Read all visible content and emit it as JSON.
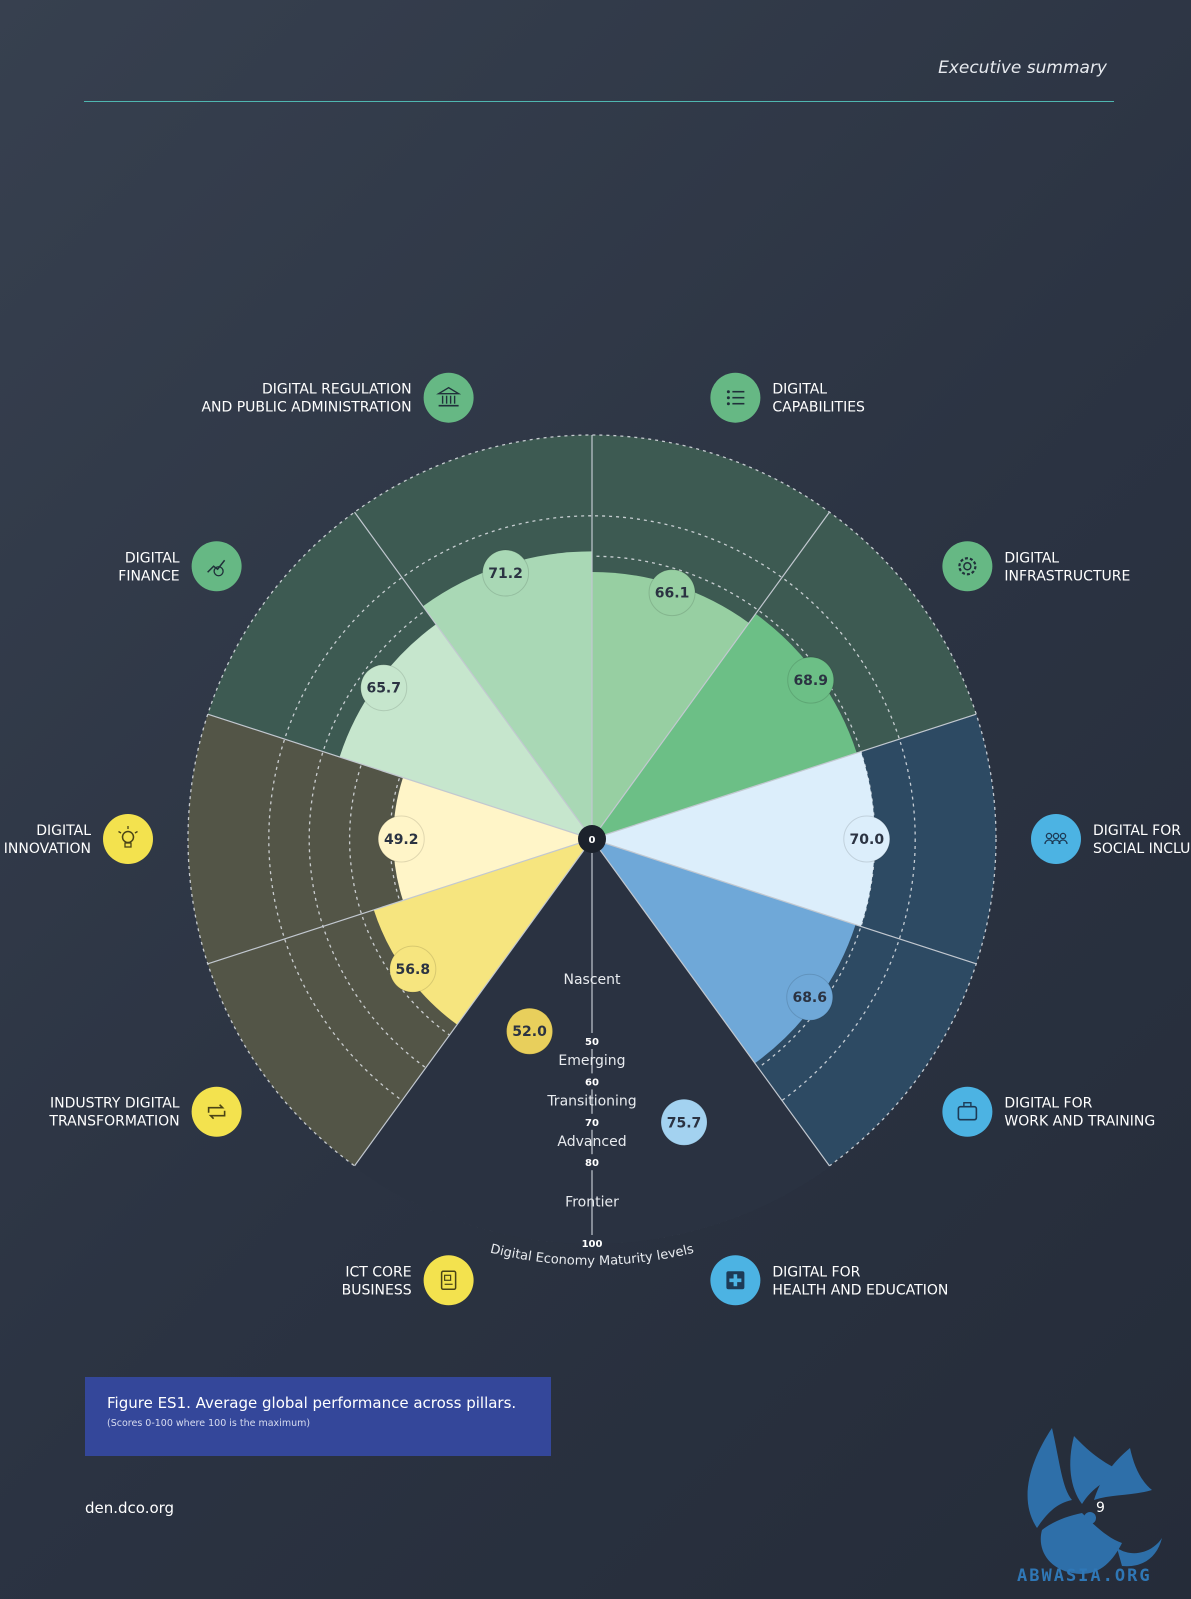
{
  "header": {
    "title": "Executive summary"
  },
  "chart_data": {
    "type": "polar-area",
    "scale": [
      0,
      100
    ],
    "center_label": "0",
    "pillars": [
      {
        "name": "DIGITAL\nCAPABILITIES",
        "value": 66.1,
        "color": "#97cfa2",
        "group": "green",
        "icon": "list-icon"
      },
      {
        "name": "DIGITAL\nINFRASTRUCTURE",
        "value": 68.9,
        "color": "#6cbf86",
        "group": "green",
        "icon": "gear-icon"
      },
      {
        "name": "DIGITAL FOR\nSOCIAL INCLUSION",
        "value": 70.0,
        "color": "#dceefb",
        "group": "blue",
        "icon": "people-icon"
      },
      {
        "name": "DIGITAL FOR\nWORK AND TRAINING",
        "value": 68.6,
        "color": "#6fa8d8",
        "group": "blue",
        "icon": "briefcase-icon"
      },
      {
        "name": "DIGITAL FOR\nHEALTH AND EDUCATION",
        "value": 75.7,
        "color": "#a3d2f0",
        "group": "blue",
        "icon": "medical-cross-icon"
      },
      {
        "name": "ICT CORE\nBUSINESS",
        "value": 52.0,
        "color": "#e8cf5c",
        "group": "yellow",
        "icon": "document-icon"
      },
      {
        "name": "INDUSTRY DIGITAL\nTRANSFORMATION",
        "value": 56.8,
        "color": "#f6e57f",
        "group": "yellow",
        "icon": "cycle-icon"
      },
      {
        "name": "DIGITAL\nINNOVATION",
        "value": 49.2,
        "color": "#fff5c8",
        "group": "yellow",
        "icon": "lightbulb-icon"
      },
      {
        "name": "DIGITAL\nFINANCE",
        "value": 65.7,
        "color": "#c6e6cd",
        "group": "green",
        "icon": "finance-chart-icon"
      },
      {
        "name": "DIGITAL REGULATION\nAND PUBLIC ADMINISTRATION",
        "value": 71.2,
        "color": "#a9d8b5",
        "group": "green",
        "icon": "institution-icon"
      }
    ],
    "maturity_levels": [
      {
        "name": "Nascent",
        "upper": 50
      },
      {
        "name": "Emerging",
        "upper": 60
      },
      {
        "name": "Transitioning",
        "upper": 70
      },
      {
        "name": "Advanced",
        "upper": 80
      },
      {
        "name": "Frontier",
        "upper": 100
      }
    ],
    "ring_ticks": [
      50,
      60,
      70,
      80,
      100
    ],
    "axis_title": "Digital Economy Maturity levels",
    "background_colors": {
      "green": "#3d5a52",
      "blue": "#2d4a63",
      "yellow": "#535547"
    },
    "icon_circle_colors": {
      "green": "#66b884",
      "blue": "#4cb3e3",
      "yellow": "#f3e24e"
    }
  },
  "figure": {
    "title": "Figure ES1. Average global performance across pillars.",
    "subtitle": "(Scores 0-100 where 100 is the maximum)"
  },
  "footer": {
    "url": "den.dco.org",
    "page_number": "9"
  },
  "watermark": {
    "text": "ABWASIA.ORG"
  }
}
